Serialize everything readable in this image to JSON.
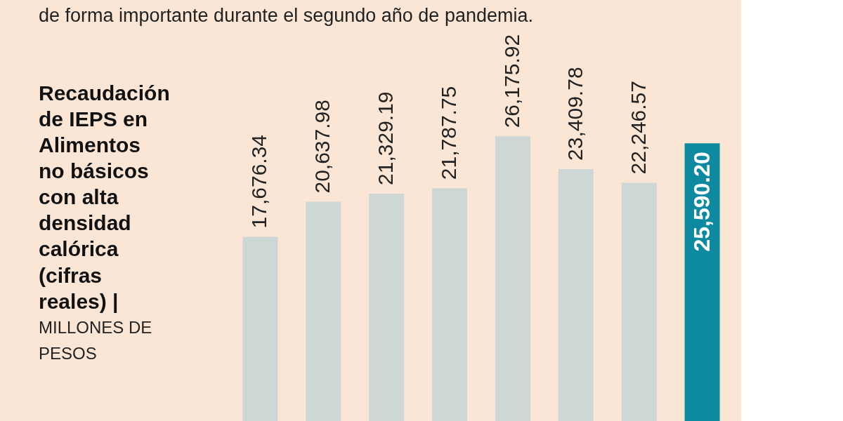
{
  "chart_data": {
    "type": "bar",
    "title": "Recaudación de IEPS en Alimentos no básicos con alta densidad calórica (cifras reales) |",
    "subtitle": "MILLONES DE PESOS",
    "annotations": [
      "de forma importante durante el segundo año de pandemia."
    ],
    "categories": [
      null,
      null,
      null,
      null,
      null,
      null,
      null,
      null
    ],
    "values": [
      17676.34,
      20637.98,
      21329.19,
      21787.75,
      26175.92,
      23409.78,
      22246.57,
      25590.2
    ],
    "colors": [
      "#cdd7d6",
      "#cdd7d6",
      "#cdd7d6",
      "#cdd7d6",
      "#cdd7d6",
      "#cdd7d6",
      "#cdd7d6",
      "#0e8aa0"
    ],
    "value_labels": [
      "17,676.34",
      "20,637.98",
      "21,329.19",
      "21,787.75",
      "26,175.92",
      "23,409.78",
      "22,246.57",
      "25,590.20"
    ],
    "tick_labels": false
  }
}
